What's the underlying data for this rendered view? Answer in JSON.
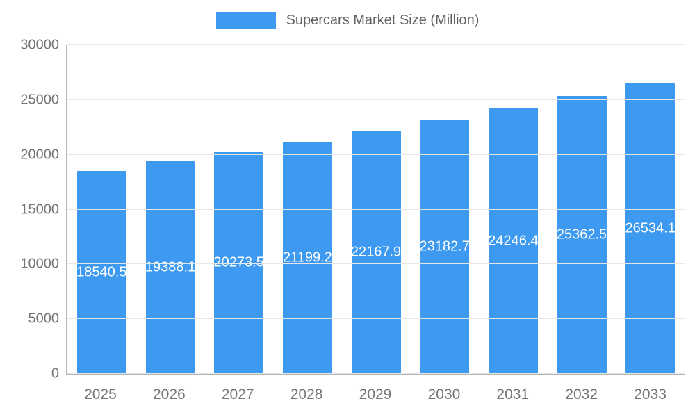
{
  "legend": {
    "label": "Supercars Market Size (Million)"
  },
  "colors": {
    "bar": "#3D9AF0",
    "axis_text": "#757575",
    "legend_text": "#616161",
    "grid": "#e6e6e6",
    "axis_line": "#b5b5b5",
    "bar_label_text": "#ffffff"
  },
  "chart_data": {
    "type": "bar",
    "title": "Supercars Market Size (Million)",
    "categories": [
      "2025",
      "2026",
      "2027",
      "2028",
      "2029",
      "2030",
      "2031",
      "2032",
      "2033"
    ],
    "values": [
      18540.5,
      19388.1,
      20273.5,
      21199.2,
      22167.9,
      23182.7,
      24246.4,
      25362.5,
      26534.1
    ],
    "labels": [
      "18540.5",
      "19388.1",
      "20273.5",
      "21199.2",
      "22167.9",
      "23182.7",
      "24246.4",
      "25362.5",
      "26534.1"
    ],
    "xlabel": "",
    "ylabel": "",
    "ylim": [
      0,
      30000
    ],
    "yticks": [
      0,
      5000,
      10000,
      15000,
      20000,
      25000,
      30000
    ],
    "grid": true,
    "legend_position": "top"
  }
}
